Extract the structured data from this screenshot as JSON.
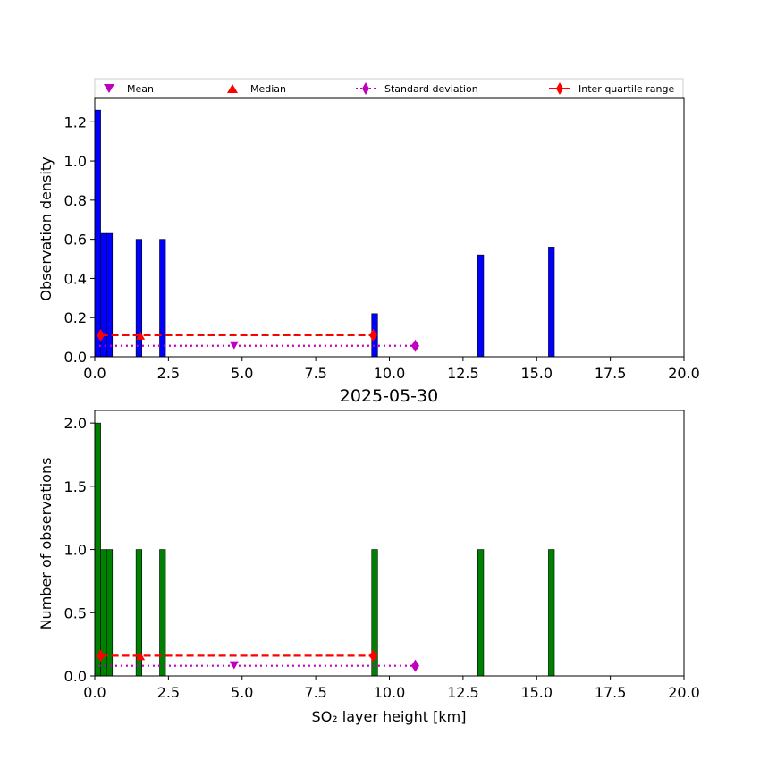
{
  "chart_data": [
    {
      "type": "bar",
      "xlabel": "",
      "ylabel": "Observation density",
      "xlim": [
        0,
        20
      ],
      "ylim": [
        0,
        1.32
      ],
      "xticks": [
        "0.0",
        "2.5",
        "5.0",
        "7.5",
        "10.0",
        "12.5",
        "15.0",
        "17.5",
        "20.0"
      ],
      "yticks": [
        "0.0",
        "0.2",
        "0.4",
        "0.6",
        "0.8",
        "1.0",
        "1.2"
      ],
      "bar_color": "#0000ff",
      "bins": [
        {
          "x0": 0.0,
          "x1": 0.2,
          "value": 1.26
        },
        {
          "x0": 0.2,
          "x1": 0.4,
          "value": 0.63
        },
        {
          "x0": 0.4,
          "x1": 0.6,
          "value": 0.63
        },
        {
          "x0": 1.4,
          "x1": 1.6,
          "value": 0.6
        },
        {
          "x0": 2.2,
          "x1": 2.4,
          "value": 0.6
        },
        {
          "x0": 9.4,
          "x1": 9.6,
          "value": 0.22
        },
        {
          "x0": 13.0,
          "x1": 13.2,
          "value": 0.52
        },
        {
          "x0": 15.4,
          "x1": 15.6,
          "value": 0.56
        }
      ],
      "mean": {
        "x": 4.73,
        "y": 0.056
      },
      "median": {
        "x": 1.55,
        "y": 0.11
      },
      "std_range": [
        0.15,
        10.88
      ],
      "std_y": 0.056,
      "iqr": [
        0.2,
        9.45
      ],
      "iqr_y": 0.11
    },
    {
      "type": "bar",
      "title": "2025-05-30",
      "xlabel": "SO₂ layer height [km]",
      "ylabel": "Number of observations",
      "xlim": [
        0,
        20
      ],
      "ylim": [
        0,
        2.1
      ],
      "xticks": [
        "0.0",
        "2.5",
        "5.0",
        "7.5",
        "10.0",
        "12.5",
        "15.0",
        "17.5",
        "20.0"
      ],
      "yticks": [
        "0.0",
        "0.5",
        "1.0",
        "1.5",
        "2.0"
      ],
      "bar_color": "#008000",
      "bins": [
        {
          "x0": 0.0,
          "x1": 0.2,
          "value": 2
        },
        {
          "x0": 0.2,
          "x1": 0.4,
          "value": 1
        },
        {
          "x0": 0.4,
          "x1": 0.6,
          "value": 1
        },
        {
          "x0": 1.4,
          "x1": 1.6,
          "value": 1
        },
        {
          "x0": 2.2,
          "x1": 2.4,
          "value": 1
        },
        {
          "x0": 9.4,
          "x1": 9.6,
          "value": 1
        },
        {
          "x0": 13.0,
          "x1": 13.2,
          "value": 1
        },
        {
          "x0": 15.4,
          "x1": 15.6,
          "value": 1
        }
      ],
      "mean": {
        "x": 4.73,
        "y": 0.08
      },
      "median": {
        "x": 1.55,
        "y": 0.16
      },
      "std_range": [
        0.15,
        10.88
      ],
      "std_y": 0.08,
      "iqr": [
        0.2,
        9.45
      ],
      "iqr_y": 0.16
    }
  ],
  "legend": {
    "placement": "top",
    "mean": "Mean",
    "median": "Median",
    "std": "Standard deviation",
    "iqr": "Inter quartile range"
  },
  "colors": {
    "mean": "#c000c0",
    "median": "#ff0000",
    "std": "#c000c0",
    "iqr": "#ff0000"
  }
}
